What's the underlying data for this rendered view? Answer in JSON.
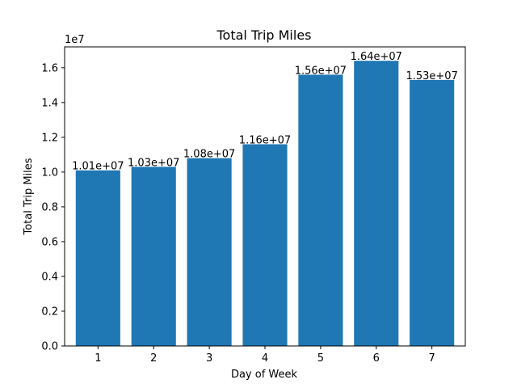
{
  "chart_data": {
    "type": "bar",
    "title": "Total Trip Miles",
    "xlabel": "Day of Week",
    "ylabel": "Total Trip Miles",
    "y_scale_label": "1e7",
    "categories": [
      "1",
      "2",
      "3",
      "4",
      "5",
      "6",
      "7"
    ],
    "values": [
      10100000,
      10300000,
      10800000,
      11600000,
      15600000,
      16400000,
      15300000
    ],
    "data_labels": [
      "1.01e+07",
      "1.03e+07",
      "1.08e+07",
      "1.16e+07",
      "1.56e+07",
      "1.64e+07",
      "1.53e+07"
    ],
    "ylim": [
      0,
      17200000
    ],
    "yticks": [
      0,
      2000000,
      4000000,
      6000000,
      8000000,
      10000000,
      12000000,
      14000000,
      16000000
    ],
    "ytick_labels": [
      "0.0",
      "0.2",
      "0.4",
      "0.6",
      "0.8",
      "1.0",
      "1.2",
      "1.4",
      "1.6"
    ],
    "bar_color": "#1f77b4",
    "grid": false
  }
}
